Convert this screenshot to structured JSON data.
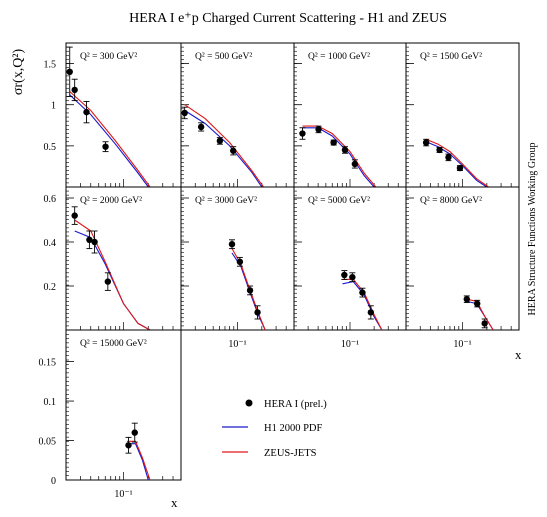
{
  "title": "HERA I e⁺p Charged Current Scattering - H1 and ZEUS",
  "side_label": "HERA Structure Functions Working Group",
  "y_axis_label": "σr(x,Q²)",
  "x_axis_label": "x",
  "x_tick_label": "10⁻¹",
  "colors": {
    "data": "#000000",
    "h1": "#1a1acc",
    "zeus": "#e01818"
  },
  "legend": {
    "data": "HERA I (prel.)",
    "h1": "H1 2000 PDF",
    "zeus": "ZEUS-JETS"
  },
  "chart_data": {
    "type": "scatter",
    "x_scale": "log",
    "xlim": [
      0.02,
      0.5
    ],
    "rows": [
      {
        "ylim": [
          0,
          1.75
        ],
        "yticks": [
          0.5,
          1,
          1.5
        ],
        "ytick_labels": [
          "0.5",
          "1",
          "1.5"
        ]
      },
      {
        "ylim": [
          0,
          0.65
        ],
        "yticks": [
          0.2,
          0.4,
          0.6
        ],
        "ytick_labels": [
          "0.2",
          "0.4",
          "0.6"
        ]
      },
      {
        "ylim": [
          0,
          0.19
        ],
        "yticks": [
          0,
          0.05,
          0.1,
          0.15
        ],
        "ytick_labels": [
          "0",
          "0.05",
          "0.1",
          "0.15"
        ]
      }
    ],
    "panels": [
      {
        "label": "Q² = 300 GeV²",
        "row": 0,
        "col": 0,
        "points": [
          {
            "x": 0.0222,
            "y": 1.4,
            "err": 0.3
          },
          {
            "x": 0.0255,
            "y": 1.18,
            "err": 0.13
          },
          {
            "x": 0.0355,
            "y": 0.91,
            "err": 0.13
          },
          {
            "x": 0.0605,
            "y": 0.49,
            "err": 0.06
          }
        ],
        "h1": {
          "x": [
            0.0222,
            0.04,
            0.08,
            0.15,
            0.2
          ],
          "y": [
            1.12,
            0.88,
            0.52,
            0.17,
            0.0
          ]
        },
        "zeus": {
          "x": [
            0.0222,
            0.04,
            0.08,
            0.15,
            0.21
          ],
          "y": [
            1.16,
            0.93,
            0.56,
            0.2,
            0.0
          ]
        }
      },
      {
        "label": "Q² = 500 GeV²",
        "row": 0,
        "col": 1,
        "points": [
          {
            "x": 0.0222,
            "y": 0.9,
            "err": 0.07
          },
          {
            "x": 0.0355,
            "y": 0.73,
            "err": 0.05
          },
          {
            "x": 0.0605,
            "y": 0.56,
            "err": 0.04
          },
          {
            "x": 0.0885,
            "y": 0.44,
            "err": 0.05
          }
        ],
        "h1": {
          "x": [
            0.0222,
            0.04,
            0.08,
            0.15,
            0.2
          ],
          "y": [
            0.93,
            0.77,
            0.5,
            0.18,
            0.0
          ]
        },
        "zeus": {
          "x": [
            0.0222,
            0.04,
            0.08,
            0.15,
            0.21
          ],
          "y": [
            1.0,
            0.83,
            0.54,
            0.2,
            0.0
          ]
        }
      },
      {
        "label": "Q² = 1000 GeV²",
        "row": 0,
        "col": 2,
        "points": [
          {
            "x": 0.0255,
            "y": 0.65,
            "err": 0.07
          },
          {
            "x": 0.0405,
            "y": 0.7,
            "err": 0.04
          },
          {
            "x": 0.0625,
            "y": 0.54,
            "err": 0.03
          },
          {
            "x": 0.0865,
            "y": 0.45,
            "err": 0.04
          },
          {
            "x": 0.115,
            "y": 0.28,
            "err": 0.05
          }
        ],
        "h1": {
          "x": [
            0.0255,
            0.04,
            0.06,
            0.1,
            0.15,
            0.2
          ],
          "y": [
            0.72,
            0.72,
            0.62,
            0.4,
            0.14,
            0.0
          ]
        },
        "zeus": {
          "x": [
            0.0255,
            0.04,
            0.06,
            0.1,
            0.15,
            0.21
          ],
          "y": [
            0.74,
            0.74,
            0.65,
            0.43,
            0.17,
            0.0
          ]
        }
      },
      {
        "label": "Q² = 1500 GeV²",
        "row": 0,
        "col": 3,
        "points": [
          {
            "x": 0.0355,
            "y": 0.54,
            "err": 0.04
          },
          {
            "x": 0.052,
            "y": 0.45,
            "err": 0.03
          },
          {
            "x": 0.067,
            "y": 0.36,
            "err": 0.04
          },
          {
            "x": 0.093,
            "y": 0.23,
            "err": 0.03
          }
        ],
        "h1": {
          "x": [
            0.0355,
            0.05,
            0.07,
            0.1,
            0.15,
            0.2
          ],
          "y": [
            0.55,
            0.49,
            0.4,
            0.26,
            0.08,
            0.0
          ]
        },
        "zeus": {
          "x": [
            0.0355,
            0.05,
            0.07,
            0.1,
            0.15,
            0.21
          ],
          "y": [
            0.58,
            0.52,
            0.43,
            0.28,
            0.1,
            0.0
          ]
        }
      },
      {
        "label": "Q² = 2000 GeV²",
        "row": 1,
        "col": 0,
        "points": [
          {
            "x": 0.0255,
            "y": 0.52,
            "err": 0.04
          },
          {
            "x": 0.0385,
            "y": 0.41,
            "err": 0.04
          },
          {
            "x": 0.0445,
            "y": 0.4,
            "err": 0.05
          },
          {
            "x": 0.0645,
            "y": 0.22,
            "err": 0.04
          }
        ],
        "h1": {
          "x": [
            0.0255,
            0.04,
            0.06,
            0.1,
            0.15,
            0.21
          ],
          "y": [
            0.45,
            0.42,
            0.3,
            0.12,
            0.03,
            0.0
          ]
        },
        "zeus": {
          "x": [
            0.0255,
            0.04,
            0.06,
            0.1,
            0.15,
            0.21
          ],
          "y": [
            0.5,
            0.45,
            0.31,
            0.12,
            0.03,
            0.0
          ]
        }
      },
      {
        "label": "Q² = 3000 GeV²",
        "row": 1,
        "col": 1,
        "points": [
          {
            "x": 0.0855,
            "y": 0.39,
            "err": 0.02
          },
          {
            "x": 0.107,
            "y": 0.31,
            "err": 0.02
          },
          {
            "x": 0.143,
            "y": 0.18,
            "err": 0.02
          },
          {
            "x": 0.177,
            "y": 0.08,
            "err": 0.03
          }
        ],
        "h1": {
          "x": [
            0.0855,
            0.11,
            0.14,
            0.18,
            0.22
          ],
          "y": [
            0.35,
            0.29,
            0.18,
            0.07,
            0.0
          ]
        },
        "zeus": {
          "x": [
            0.0855,
            0.11,
            0.14,
            0.18,
            0.22
          ],
          "y": [
            0.37,
            0.3,
            0.19,
            0.08,
            0.0
          ]
        }
      },
      {
        "label": "Q² = 5000 GeV²",
        "row": 1,
        "col": 2,
        "points": [
          {
            "x": 0.085,
            "y": 0.25,
            "err": 0.02
          },
          {
            "x": 0.107,
            "y": 0.24,
            "err": 0.02
          },
          {
            "x": 0.143,
            "y": 0.17,
            "err": 0.02
          },
          {
            "x": 0.182,
            "y": 0.08,
            "err": 0.03
          }
        ],
        "h1": {
          "x": [
            0.0805,
            0.11,
            0.15,
            0.2,
            0.25
          ],
          "y": [
            0.21,
            0.22,
            0.16,
            0.06,
            0.0
          ]
        },
        "zeus": {
          "x": [
            0.0805,
            0.11,
            0.15,
            0.2,
            0.25
          ],
          "y": [
            0.23,
            0.23,
            0.17,
            0.07,
            0.0
          ]
        }
      },
      {
        "label": "Q² = 8000 GeV²",
        "row": 1,
        "col": 3,
        "points": [
          {
            "x": 0.113,
            "y": 0.14,
            "err": 0.015
          },
          {
            "x": 0.152,
            "y": 0.12,
            "err": 0.015
          },
          {
            "x": 0.188,
            "y": 0.03,
            "err": 0.02
          }
        ],
        "h1": {
          "x": [
            0.113,
            0.15,
            0.19,
            0.24
          ],
          "y": [
            0.13,
            0.12,
            0.06,
            0.0
          ]
        },
        "zeus": {
          "x": [
            0.113,
            0.15,
            0.19,
            0.24
          ],
          "y": [
            0.14,
            0.13,
            0.06,
            0.0
          ]
        }
      },
      {
        "label": "Q² = 15000 GeV²",
        "row": 2,
        "col": 0,
        "points": [
          {
            "x": 0.115,
            "y": 0.044,
            "err": 0.01
          },
          {
            "x": 0.137,
            "y": 0.06,
            "err": 0.012
          }
        ],
        "h1": {
          "x": [
            0.11,
            0.14,
            0.17,
            0.2
          ],
          "y": [
            0.046,
            0.046,
            0.025,
            0.0
          ]
        },
        "zeus": {
          "x": [
            0.11,
            0.14,
            0.17,
            0.21
          ],
          "y": [
            0.049,
            0.049,
            0.028,
            0.0
          ]
        }
      }
    ]
  }
}
